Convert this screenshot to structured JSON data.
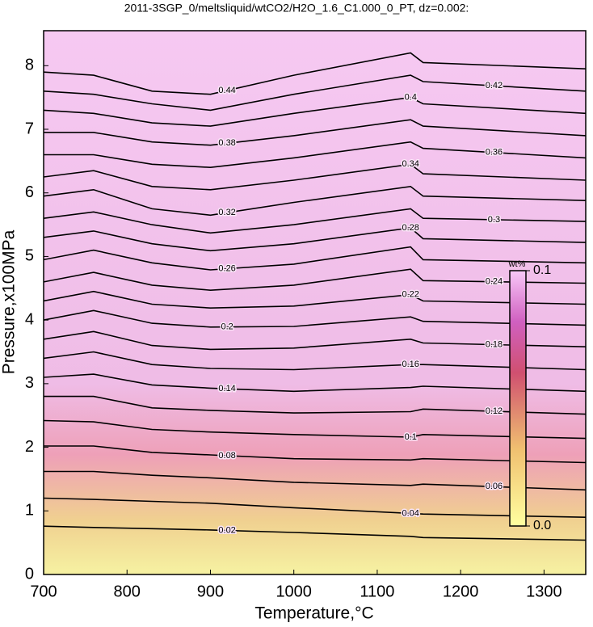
{
  "chart_data": {
    "type": "contour",
    "title": "2011-3SGP_0/meltsliquid/wtCO2/H2O_1.6_C1.000_0_PT, dz=0.002:",
    "x_label": "Temperature,°C",
    "y_label": "Pressure,x100MPa",
    "xlim": [
      700,
      1350
    ],
    "ylim": [
      0,
      8.55
    ],
    "xticks": [
      700,
      800,
      900,
      1000,
      1100,
      1200,
      1300
    ],
    "yticks": [
      0,
      1,
      2,
      3,
      4,
      5,
      6,
      7,
      8
    ],
    "x": [
      700,
      760,
      830,
      900,
      1000,
      1140,
      1155,
      1350
    ],
    "contours": [
      {
        "level": 0.02,
        "values": [
          0.76,
          0.74,
          0.72,
          0.7,
          0.66,
          0.6,
          0.58,
          0.54
        ]
      },
      {
        "level": 0.04,
        "values": [
          1.2,
          1.18,
          1.15,
          1.12,
          1.05,
          0.96,
          0.95,
          0.9
        ]
      },
      {
        "level": 0.06,
        "values": [
          1.62,
          1.62,
          1.56,
          1.52,
          1.45,
          1.4,
          1.42,
          1.33
        ]
      },
      {
        "level": 0.08,
        "values": [
          2.02,
          2.02,
          1.92,
          1.88,
          1.82,
          1.8,
          1.82,
          1.76
        ]
      },
      {
        "level": 0.1,
        "values": [
          2.42,
          2.4,
          2.28,
          2.24,
          2.2,
          2.16,
          2.2,
          2.14
        ]
      },
      {
        "level": 0.12,
        "values": [
          2.8,
          2.8,
          2.62,
          2.58,
          2.54,
          2.56,
          2.6,
          2.52
        ]
      },
      {
        "level": 0.14,
        "values": [
          3.1,
          3.15,
          2.98,
          2.93,
          2.88,
          2.94,
          2.96,
          2.88
        ]
      },
      {
        "level": 0.16,
        "values": [
          3.4,
          3.5,
          3.3,
          3.24,
          3.22,
          3.3,
          3.3,
          3.22
        ]
      },
      {
        "level": 0.18,
        "values": [
          3.7,
          3.82,
          3.6,
          3.54,
          3.56,
          3.7,
          3.64,
          3.58
        ]
      },
      {
        "level": 0.2,
        "values": [
          4.0,
          4.15,
          3.95,
          3.89,
          3.9,
          4.05,
          3.98,
          3.92
        ]
      },
      {
        "level": 0.22,
        "values": [
          4.3,
          4.45,
          4.25,
          4.19,
          4.22,
          4.4,
          4.3,
          4.25
        ]
      },
      {
        "level": 0.24,
        "values": [
          4.6,
          4.75,
          4.55,
          4.47,
          4.55,
          4.8,
          4.62,
          4.58
        ]
      },
      {
        "level": 0.26,
        "values": [
          4.95,
          5.1,
          4.9,
          4.79,
          4.88,
          5.15,
          4.95,
          4.9
        ]
      },
      {
        "level": 0.28,
        "values": [
          5.3,
          5.4,
          5.2,
          5.09,
          5.2,
          5.45,
          5.28,
          5.22
        ]
      },
      {
        "level": 0.3,
        "values": [
          5.6,
          5.7,
          5.5,
          5.37,
          5.5,
          5.75,
          5.6,
          5.55
        ]
      },
      {
        "level": 0.32,
        "values": [
          5.95,
          6.05,
          5.75,
          5.65,
          5.85,
          6.1,
          5.95,
          5.88
        ]
      },
      {
        "level": 0.34,
        "values": [
          6.25,
          6.35,
          6.1,
          6.05,
          6.2,
          6.45,
          6.3,
          6.2
        ]
      },
      {
        "level": 0.36,
        "values": [
          6.6,
          6.6,
          6.45,
          6.4,
          6.55,
          6.8,
          6.7,
          6.55
        ]
      },
      {
        "level": 0.38,
        "values": [
          6.95,
          6.95,
          6.8,
          6.75,
          6.9,
          7.15,
          7.05,
          6.9
        ]
      },
      {
        "level": 0.4,
        "values": [
          7.3,
          7.25,
          7.1,
          7.05,
          7.25,
          7.5,
          7.4,
          7.25
        ]
      },
      {
        "level": 0.42,
        "values": [
          7.6,
          7.55,
          7.4,
          7.3,
          7.55,
          7.85,
          7.75,
          7.6
        ]
      },
      {
        "level": 0.44,
        "values": [
          7.9,
          7.85,
          7.6,
          7.55,
          7.85,
          8.2,
          8.05,
          7.95
        ]
      }
    ],
    "colorbar": {
      "label": "wt%",
      "ticks": [
        {
          "value": 0,
          "label": "0.0"
        },
        0.1
      ]
    }
  }
}
